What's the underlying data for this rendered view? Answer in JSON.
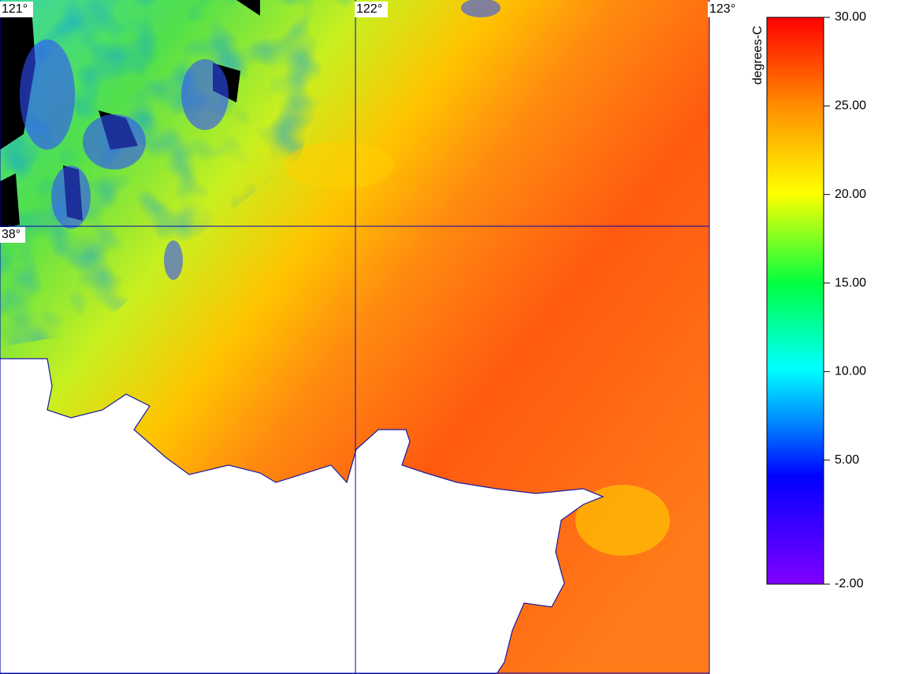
{
  "map": {
    "grid_labels": [
      "121°",
      "122°",
      "123°",
      "38°"
    ]
  },
  "colorbar": {
    "label": "degrees-C",
    "range": [
      -2,
      30
    ],
    "ticks": [
      {
        "value": 30,
        "label": "30.00"
      },
      {
        "value": 25,
        "label": "25.00"
      },
      {
        "value": 20,
        "label": "20.00"
      },
      {
        "value": 15,
        "label": "15.00"
      },
      {
        "value": 10,
        "label": "10.00"
      },
      {
        "value": 5,
        "label": "5.00"
      },
      {
        "value": -2,
        "label": "-2.00"
      }
    ]
  }
}
